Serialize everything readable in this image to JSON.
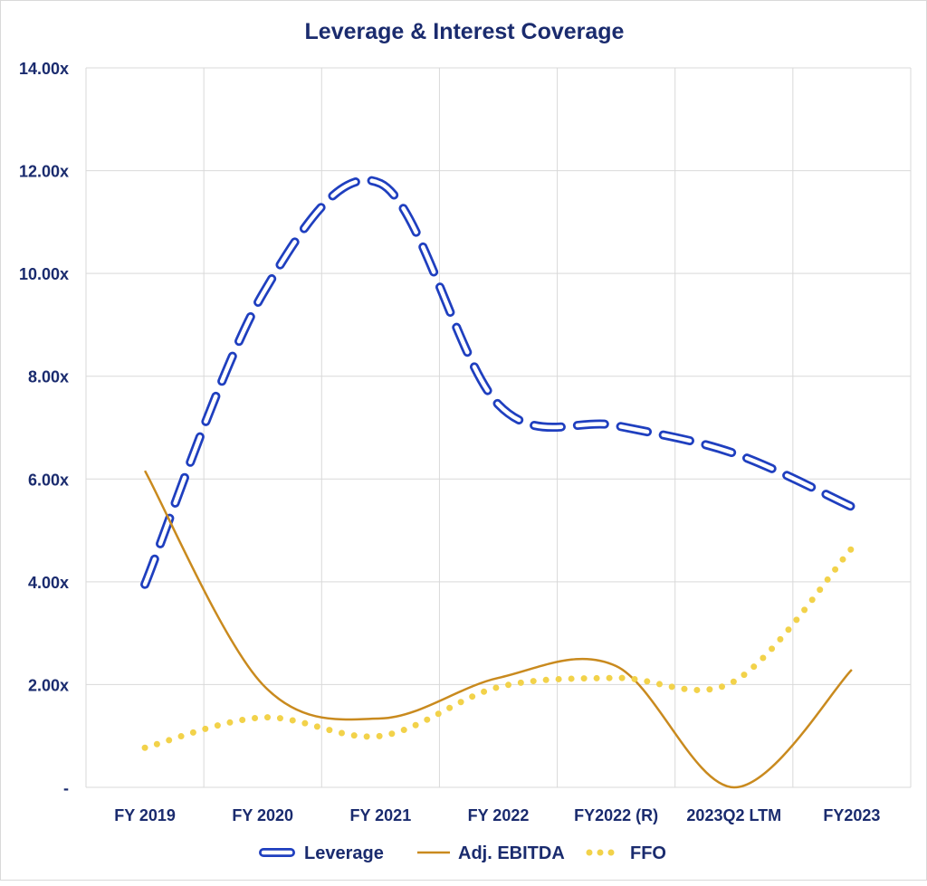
{
  "chart_data": {
    "type": "line",
    "title": "Leverage & Interest Coverage",
    "categories": [
      "FY 2019",
      "FY 2020",
      "FY 2021",
      "FY 2022",
      "FY2022 (R)",
      "2023Q2 LTM",
      "FY2023"
    ],
    "ylim": [
      0,
      14
    ],
    "yticks": [
      0,
      2,
      4,
      6,
      8,
      10,
      12,
      14
    ],
    "ytick_labels": [
      "-",
      "2.00x",
      "4.00x",
      "6.00x",
      "8.00x",
      "10.00x",
      "12.00x",
      "14.00x"
    ],
    "grid": true,
    "legend_position": "bottom",
    "series": [
      {
        "name": "Leverage",
        "values": [
          3.95,
          9.6,
          11.75,
          7.45,
          7.04,
          6.5,
          5.46
        ],
        "color": "#1f3fbf",
        "style": "dashed-outline"
      },
      {
        "name": "Adj. EBITDA",
        "values": [
          6.16,
          2.0,
          1.34,
          2.13,
          2.36,
          0.0,
          2.29
        ],
        "color": "#c98a1e",
        "style": "solid"
      },
      {
        "name": "FFO",
        "values": [
          0.77,
          1.36,
          1.0,
          1.95,
          2.13,
          2.06,
          4.65
        ],
        "color": "#f2d24a",
        "style": "dotted"
      }
    ]
  }
}
